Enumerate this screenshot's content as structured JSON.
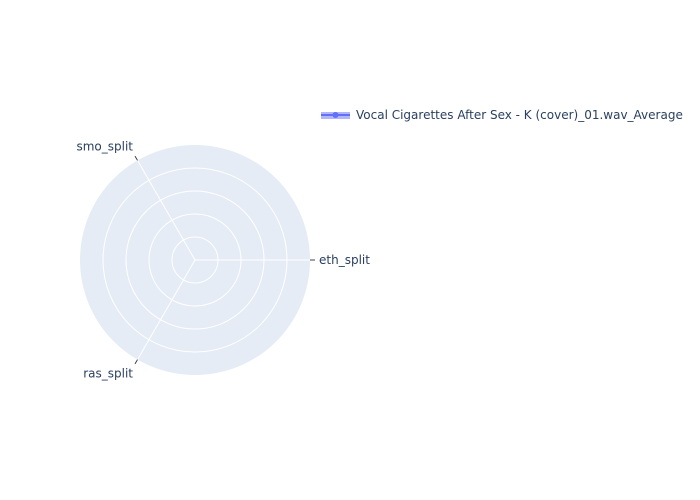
{
  "chart_data": {
    "type": "radar",
    "axes": [
      "eth_split",
      "smo_split",
      "ras_split"
    ],
    "series": [
      {
        "name": "Vocal Cigarettes After Sex - K (cover)_01.wav_Average",
        "values": [
          0,
          0,
          0
        ]
      }
    ],
    "radial_gridlines": 5,
    "legend_position": "top-right",
    "colors": {
      "polar_background": "#e5ecf6",
      "grid": "#ffffff",
      "series": "#636efa",
      "text": "#2a3f5f"
    }
  }
}
